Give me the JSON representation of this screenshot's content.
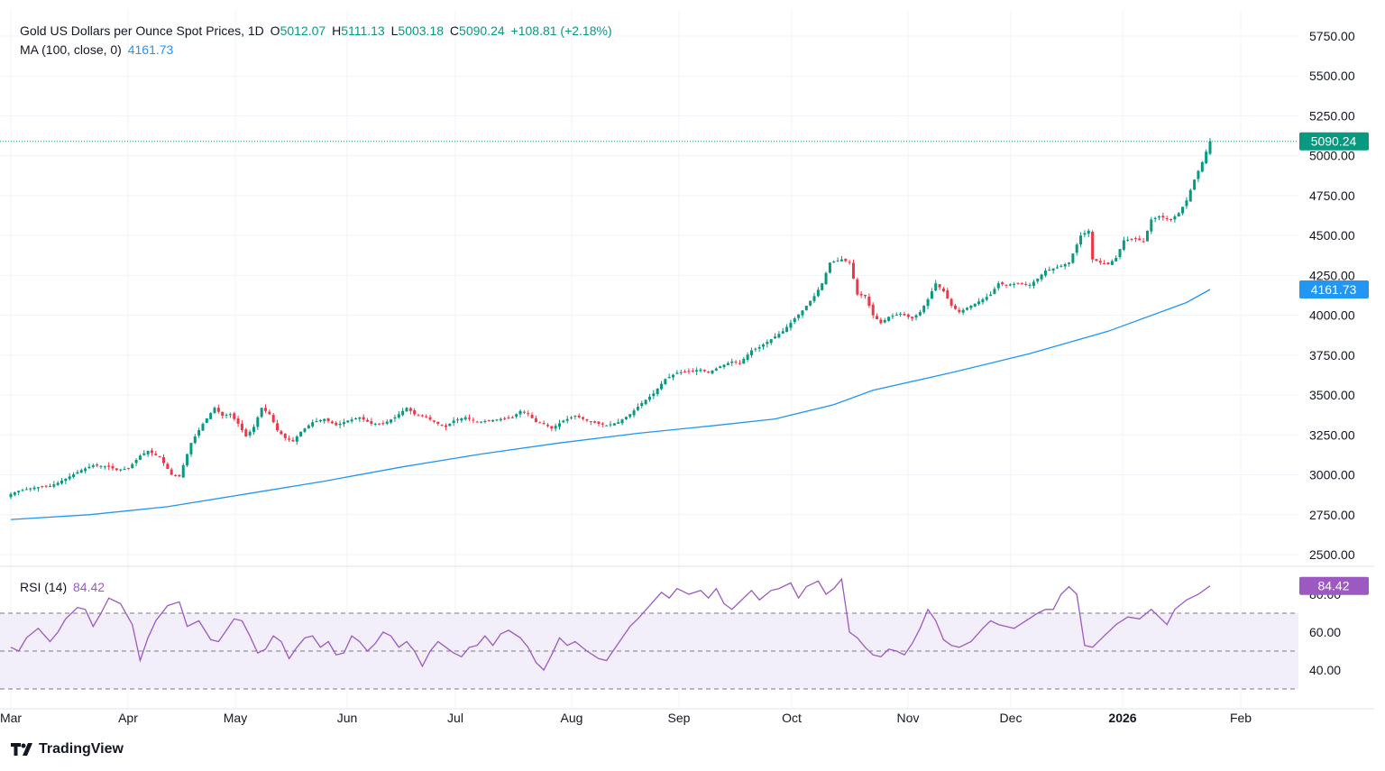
{
  "legend": {
    "title": "Gold US Dollars per Ounce Spot Prices, 1D",
    "open_label": "O",
    "open": "5012.07",
    "high_label": "H",
    "high": "5111.13",
    "low_label": "L",
    "low": "5003.18",
    "close_label": "C",
    "close": "5090.24",
    "change": "+108.81 (+2.18%)",
    "ma_label": "MA (100, close, 0)",
    "ma_value": "4161.73",
    "rsi_label": "RSI (14)",
    "rsi_value": "84.42"
  },
  "brand": "TradingView",
  "colors": {
    "up": "#089981",
    "down": "#f23645",
    "ma": "#2196f3",
    "rsi": "#9c59c2",
    "rsi_band": "#f3effa",
    "grid": "#f0f3fa"
  },
  "chart_data": [
    {
      "type": "candlestick",
      "title": "Gold US Dollars per Ounce Spot Prices, 1D",
      "x_ticks": [
        "Mar",
        "Apr",
        "May",
        "Jun",
        "Jul",
        "Aug",
        "Sep",
        "Oct",
        "Nov",
        "Dec",
        "2026",
        "Feb"
      ],
      "y_ticks": [
        "2500.00",
        "2750.00",
        "3000.00",
        "3250.00",
        "3500.00",
        "3750.00",
        "4000.00",
        "4250.00",
        "4500.00",
        "4750.00",
        "5000.00",
        "5250.00",
        "5500.00",
        "5750.00"
      ],
      "ylim": [
        2420,
        5840
      ],
      "last_close": 5090.24,
      "ohlc_last": {
        "open": 5012.07,
        "high": 5111.13,
        "low": 5003.18,
        "close": 5090.24
      },
      "close_path": [
        [
          0,
          2880
        ],
        [
          2,
          2900
        ],
        [
          6,
          2920
        ],
        [
          10,
          2930
        ],
        [
          12,
          2950
        ],
        [
          18,
          3030
        ],
        [
          21,
          3060
        ],
        [
          25,
          3050
        ],
        [
          27,
          3030
        ],
        [
          30,
          3040
        ],
        [
          33,
          3120
        ],
        [
          35,
          3150
        ],
        [
          38,
          3110
        ],
        [
          41,
          3000
        ],
        [
          43,
          2990
        ],
        [
          46,
          3200
        ],
        [
          49,
          3320
        ],
        [
          52,
          3420
        ],
        [
          54,
          3370
        ],
        [
          56,
          3380
        ],
        [
          58,
          3320
        ],
        [
          60,
          3240
        ],
        [
          62,
          3300
        ],
        [
          64,
          3420
        ],
        [
          66,
          3380
        ],
        [
          68,
          3280
        ],
        [
          70,
          3230
        ],
        [
          72,
          3210
        ],
        [
          74,
          3270
        ],
        [
          77,
          3330
        ],
        [
          80,
          3350
        ],
        [
          83,
          3310
        ],
        [
          86,
          3340
        ],
        [
          89,
          3360
        ],
        [
          92,
          3320
        ],
        [
          95,
          3320
        ],
        [
          98,
          3360
        ],
        [
          101,
          3420
        ],
        [
          103,
          3380
        ],
        [
          106,
          3360
        ],
        [
          109,
          3320
        ],
        [
          111,
          3300
        ],
        [
          113,
          3340
        ],
        [
          116,
          3360
        ],
        [
          119,
          3330
        ],
        [
          122,
          3340
        ],
        [
          125,
          3350
        ],
        [
          128,
          3360
        ],
        [
          130,
          3400
        ],
        [
          132,
          3380
        ],
        [
          134,
          3330
        ],
        [
          136,
          3320
        ],
        [
          138,
          3290
        ],
        [
          141,
          3340
        ],
        [
          144,
          3370
        ],
        [
          147,
          3340
        ],
        [
          150,
          3320
        ],
        [
          152,
          3310
        ],
        [
          155,
          3330
        ],
        [
          158,
          3380
        ],
        [
          161,
          3450
        ],
        [
          164,
          3510
        ],
        [
          167,
          3600
        ],
        [
          170,
          3640
        ],
        [
          173,
          3650
        ],
        [
          176,
          3660
        ],
        [
          178,
          3640
        ],
        [
          181,
          3680
        ],
        [
          184,
          3710
        ],
        [
          186,
          3700
        ],
        [
          189,
          3780
        ],
        [
          191,
          3800
        ],
        [
          194,
          3850
        ],
        [
          197,
          3900
        ],
        [
          200,
          3980
        ],
        [
          202,
          4030
        ],
        [
          205,
          4120
        ],
        [
          207,
          4200
        ],
        [
          209,
          4330
        ],
        [
          212,
          4350
        ],
        [
          214,
          4330
        ],
        [
          216,
          4130
        ],
        [
          218,
          4120
        ],
        [
          220,
          4000
        ],
        [
          222,
          3950
        ],
        [
          224,
          3990
        ],
        [
          227,
          4010
        ],
        [
          230,
          3980
        ],
        [
          232,
          4020
        ],
        [
          234,
          4100
        ],
        [
          236,
          4200
        ],
        [
          238,
          4150
        ],
        [
          240,
          4060
        ],
        [
          242,
          4020
        ],
        [
          245,
          4060
        ],
        [
          248,
          4100
        ],
        [
          250,
          4130
        ],
        [
          252,
          4200
        ],
        [
          254,
          4190
        ],
        [
          257,
          4200
        ],
        [
          260,
          4190
        ],
        [
          262,
          4230
        ],
        [
          264,
          4280
        ],
        [
          267,
          4300
        ],
        [
          270,
          4330
        ],
        [
          273,
          4500
        ],
        [
          275,
          4530
        ],
        [
          276,
          4350
        ],
        [
          278,
          4330
        ],
        [
          280,
          4320
        ],
        [
          282,
          4360
        ],
        [
          284,
          4470
        ],
        [
          287,
          4480
        ],
        [
          289,
          4460
        ],
        [
          291,
          4600
        ],
        [
          293,
          4620
        ],
        [
          296,
          4600
        ],
        [
          298,
          4640
        ],
        [
          300,
          4720
        ],
        [
          302,
          4850
        ],
        [
          304,
          4960
        ],
        [
          306,
          5090.24
        ]
      ],
      "ma100_path": [
        [
          0,
          2720
        ],
        [
          20,
          2750
        ],
        [
          40,
          2800
        ],
        [
          60,
          2880
        ],
        [
          80,
          2960
        ],
        [
          100,
          3050
        ],
        [
          120,
          3130
        ],
        [
          140,
          3200
        ],
        [
          160,
          3260
        ],
        [
          180,
          3310
        ],
        [
          195,
          3350
        ],
        [
          210,
          3440
        ],
        [
          220,
          3530
        ],
        [
          240,
          3640
        ],
        [
          260,
          3760
        ],
        [
          280,
          3900
        ],
        [
          300,
          4080
        ],
        [
          306,
          4161.73
        ]
      ]
    },
    {
      "type": "line",
      "title": "RSI (14)",
      "y_ticks": [
        "40.00",
        "60.00",
        "80.00"
      ],
      "ylim": [
        28,
        87
      ],
      "bands": [
        30,
        50,
        70
      ],
      "last_value": 84.42,
      "rsi_path": [
        [
          0,
          52
        ],
        [
          2,
          50
        ],
        [
          4,
          57
        ],
        [
          7,
          62
        ],
        [
          10,
          55
        ],
        [
          12,
          60
        ],
        [
          14,
          67
        ],
        [
          17,
          73
        ],
        [
          19,
          72
        ],
        [
          21,
          63
        ],
        [
          23,
          70
        ],
        [
          25,
          78
        ],
        [
          28,
          75
        ],
        [
          31,
          64
        ],
        [
          33,
          45
        ],
        [
          35,
          57
        ],
        [
          37,
          66
        ],
        [
          40,
          74
        ],
        [
          43,
          76
        ],
        [
          45,
          63
        ],
        [
          48,
          66
        ],
        [
          51,
          56
        ],
        [
          53,
          55
        ],
        [
          55,
          61
        ],
        [
          57,
          67
        ],
        [
          59,
          66
        ],
        [
          61,
          58
        ],
        [
          63,
          49
        ],
        [
          65,
          51
        ],
        [
          67,
          58
        ],
        [
          69,
          55
        ],
        [
          71,
          46
        ],
        [
          73,
          52
        ],
        [
          75,
          57
        ],
        [
          77,
          58
        ],
        [
          79,
          52
        ],
        [
          81,
          55
        ],
        [
          83,
          48
        ],
        [
          85,
          49
        ],
        [
          87,
          58
        ],
        [
          89,
          55
        ],
        [
          91,
          50
        ],
        [
          93,
          54
        ],
        [
          95,
          60
        ],
        [
          97,
          58
        ],
        [
          99,
          52
        ],
        [
          101,
          55
        ],
        [
          103,
          50
        ],
        [
          105,
          42
        ],
        [
          107,
          50
        ],
        [
          109,
          55
        ],
        [
          111,
          52
        ],
        [
          113,
          49
        ],
        [
          115,
          47
        ],
        [
          117,
          52
        ],
        [
          119,
          53
        ],
        [
          121,
          58
        ],
        [
          123,
          53
        ],
        [
          125,
          59
        ],
        [
          127,
          61
        ],
        [
          130,
          57
        ],
        [
          132,
          52
        ],
        [
          134,
          44
        ],
        [
          136,
          40
        ],
        [
          138,
          48
        ],
        [
          140,
          57
        ],
        [
          142,
          53
        ],
        [
          144,
          55
        ],
        [
          147,
          50
        ],
        [
          150,
          46
        ],
        [
          152,
          45
        ],
        [
          154,
          51
        ],
        [
          156,
          57
        ],
        [
          158,
          63
        ],
        [
          160,
          67
        ],
        [
          163,
          74
        ],
        [
          166,
          81
        ],
        [
          168,
          78
        ],
        [
          170,
          83
        ],
        [
          173,
          80
        ],
        [
          176,
          82
        ],
        [
          178,
          78
        ],
        [
          180,
          83
        ],
        [
          182,
          75
        ],
        [
          184,
          72
        ],
        [
          186,
          76
        ],
        [
          189,
          82
        ],
        [
          191,
          77
        ],
        [
          194,
          82
        ],
        [
          196,
          83
        ],
        [
          199,
          86
        ],
        [
          201,
          78
        ],
        [
          203,
          84
        ],
        [
          206,
          87
        ],
        [
          208,
          80
        ],
        [
          210,
          83
        ],
        [
          212,
          88
        ],
        [
          214,
          60
        ],
        [
          216,
          57
        ],
        [
          218,
          52
        ],
        [
          220,
          48
        ],
        [
          222,
          47
        ],
        [
          224,
          51
        ],
        [
          226,
          50
        ],
        [
          228,
          48
        ],
        [
          230,
          54
        ],
        [
          232,
          62
        ],
        [
          234,
          72
        ],
        [
          236,
          66
        ],
        [
          238,
          56
        ],
        [
          240,
          53
        ],
        [
          242,
          52
        ],
        [
          245,
          55
        ],
        [
          248,
          62
        ],
        [
          250,
          66
        ],
        [
          252,
          64
        ],
        [
          254,
          63
        ],
        [
          256,
          62
        ],
        [
          259,
          66
        ],
        [
          262,
          70
        ],
        [
          264,
          72
        ],
        [
          266,
          72
        ],
        [
          268,
          80
        ],
        [
          270,
          84
        ],
        [
          272,
          80
        ],
        [
          274,
          53
        ],
        [
          276,
          52
        ],
        [
          279,
          58
        ],
        [
          282,
          64
        ],
        [
          285,
          68
        ],
        [
          288,
          67
        ],
        [
          291,
          72
        ],
        [
          293,
          68
        ],
        [
          295,
          64
        ],
        [
          297,
          72
        ],
        [
          300,
          77
        ],
        [
          303,
          80
        ],
        [
          306,
          84.42
        ]
      ]
    }
  ]
}
